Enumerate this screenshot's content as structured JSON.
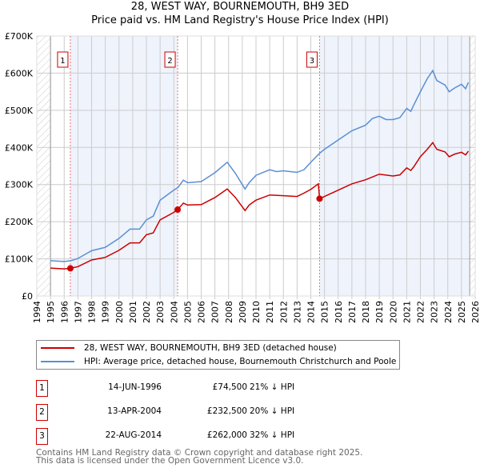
{
  "colors": {
    "property": "#cc0000",
    "hpi": "#5b8fd4",
    "shade": "#eef3fc",
    "grid": "#cccccc"
  },
  "chart_data": {
    "type": "line",
    "title": "28, WEST WAY, BOURNEMOUTH, BH9 3ED",
    "subtitle": "Price paid vs. HM Land Registry's House Price Index (HPI)",
    "xlim": [
      1994,
      2026
    ],
    "ylim": [
      0,
      700000
    ],
    "x_ticks": [
      "1994",
      "1995",
      "1996",
      "1997",
      "1998",
      "1999",
      "2000",
      "2001",
      "2002",
      "2003",
      "2004",
      "2005",
      "2006",
      "2007",
      "2008",
      "2009",
      "2010",
      "2011",
      "2012",
      "2013",
      "2014",
      "2015",
      "2016",
      "2017",
      "2018",
      "2019",
      "2020",
      "2021",
      "2022",
      "2023",
      "2024",
      "2025",
      "2026"
    ],
    "y_ticks": [
      {
        "v": 0,
        "label": "£0"
      },
      {
        "v": 100000,
        "label": "£100K"
      },
      {
        "v": 200000,
        "label": "£200K"
      },
      {
        "v": 300000,
        "label": "£300K"
      },
      {
        "v": 400000,
        "label": "£400K"
      },
      {
        "v": 500000,
        "label": "£500K"
      },
      {
        "v": 600000,
        "label": "£600K"
      },
      {
        "v": 700000,
        "label": "£700K"
      }
    ],
    "grid": true,
    "data_range": [
      1995,
      2025.6
    ],
    "series": [
      {
        "name": "28, WEST WAY, BOURNEMOUTH, BH9 3ED (detached house)",
        "color": "#cc0000",
        "x": [
          1995,
          1996,
          1996.45,
          1997,
          1998,
          1999,
          2000,
          2000.8,
          2001.5,
          2002,
          2002.5,
          2003,
          2004,
          2004.28,
          2004.7,
          2005,
          2006,
          2007,
          2007.9,
          2008.5,
          2009.2,
          2009.5,
          2010,
          2011,
          2012,
          2013,
          2013.5,
          2014,
          2014.55,
          2014.64,
          2015,
          2016,
          2017,
          2018,
          2019,
          2020,
          2020.5,
          2021,
          2021.3,
          2021.5,
          2022,
          2022.5,
          2022.9,
          2023.2,
          2023.8,
          2024.1,
          2024.5,
          2025,
          2025.3,
          2025.5
        ],
        "y": [
          75000,
          73000,
          74500,
          79000,
          97000,
          104000,
          123000,
          143000,
          143000,
          165000,
          170000,
          205000,
          225000,
          232500,
          250000,
          245000,
          246000,
          265000,
          288000,
          265000,
          230000,
          245000,
          258000,
          272000,
          270000,
          268000,
          277000,
          287000,
          302000,
          262000,
          268000,
          285000,
          302000,
          313000,
          328000,
          323000,
          326000,
          345000,
          338000,
          347000,
          375000,
          395000,
          413000,
          395000,
          388000,
          375000,
          382000,
          387000,
          380000,
          390000
        ]
      },
      {
        "name": "HPI: Average price, detached house, Bournemouth Christchurch and Poole",
        "color": "#5b8fd4",
        "x": [
          1995,
          1996,
          1996.5,
          1997,
          1998,
          1999,
          2000,
          2000.8,
          2001.5,
          2002,
          2002.5,
          2003,
          2004,
          2004.3,
          2004.7,
          2005,
          2006,
          2007,
          2007.9,
          2008.5,
          2009.2,
          2009.5,
          2010,
          2011,
          2011.5,
          2012,
          2012.5,
          2013,
          2013.5,
          2014,
          2014.6,
          2015,
          2016,
          2017,
          2018,
          2018.5,
          2019,
          2019.5,
          2020,
          2020.5,
          2021,
          2021.3,
          2021.5,
          2022,
          2022.5,
          2022.9,
          2023.2,
          2023.8,
          2024.1,
          2024.5,
          2025,
          2025.3,
          2025.5
        ],
        "y": [
          95000,
          93000,
          95000,
          101000,
          122000,
          131000,
          155000,
          180000,
          180000,
          205000,
          215000,
          258000,
          285000,
          292000,
          312000,
          305000,
          308000,
          332000,
          360000,
          330000,
          288000,
          305000,
          325000,
          340000,
          335000,
          337000,
          335000,
          333000,
          340000,
          360000,
          383000,
          395000,
          420000,
          445000,
          460000,
          478000,
          484000,
          475000,
          475000,
          480000,
          505000,
          497000,
          513000,
          550000,
          585000,
          607000,
          580000,
          568000,
          550000,
          560000,
          570000,
          558000,
          575000
        ]
      }
    ],
    "sales": [
      {
        "id": "1",
        "x": 1996.45,
        "date": "14-JUN-1996",
        "price_value": 74500,
        "price": "£74,500",
        "pct": "21% ↓ HPI"
      },
      {
        "id": "2",
        "x": 2004.28,
        "date": "13-APR-2004",
        "price_value": 232500,
        "price": "£232,500",
        "pct": "20% ↓ HPI"
      },
      {
        "id": "3",
        "x": 2014.64,
        "date": "22-AUG-2014",
        "price_value": 262000,
        "price": "£262,000",
        "pct": "32% ↓ HPI"
      }
    ],
    "legend_position": "below"
  },
  "footer": {
    "line1": "Contains HM Land Registry data © Crown copyright and database right 2025.",
    "line2": "This data is licensed under the Open Government Licence v3.0."
  }
}
